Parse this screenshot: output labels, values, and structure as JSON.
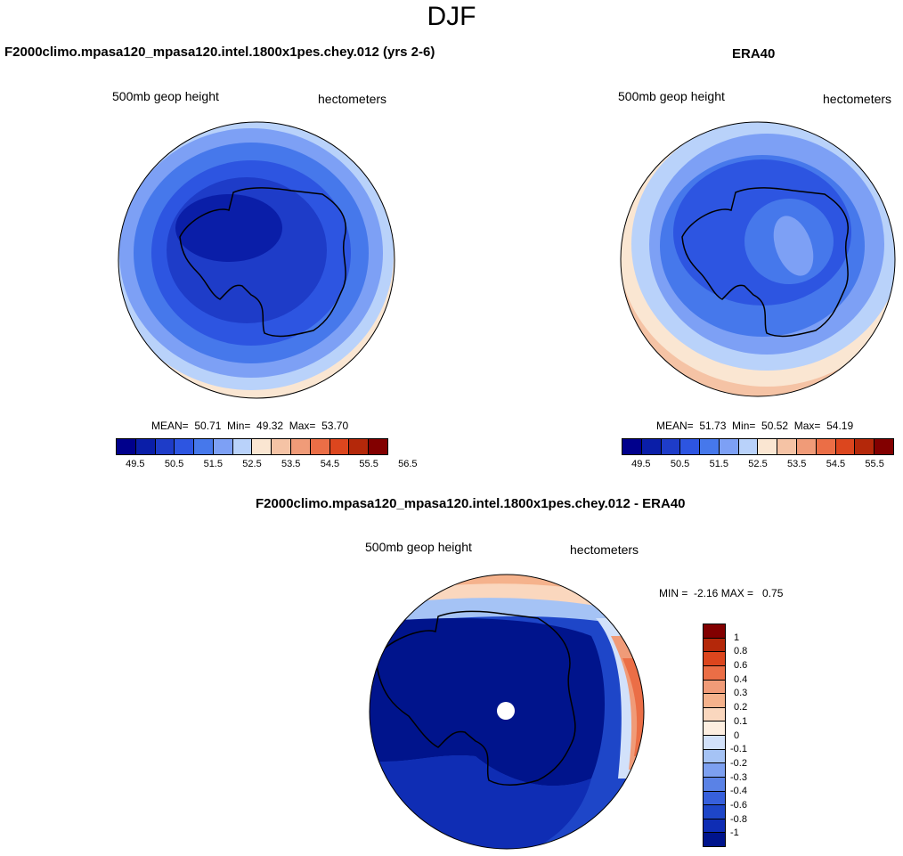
{
  "season": "DJF",
  "panels": [
    {
      "title": "F2000climo.mpasa120_mpasa120.intel.1800x1pes.chey.012 (yrs 2-6)",
      "variable": "500mb geop height",
      "units": "hectometers",
      "stats": "MEAN=  50.71  Min=  49.32  Max=  53.70"
    },
    {
      "title": "ERA40",
      "variable": "500mb geop height",
      "units": "hectometers",
      "stats": "MEAN=  51.73  Min=  50.52  Max=  54.19"
    },
    {
      "title": "F2000climo.mpasa120_mpasa120.intel.1800x1pes.chey.012 - ERA40",
      "variable": "500mb geop height",
      "units": "hectometers",
      "stats": "MIN =  -2.16 MAX =   0.75"
    }
  ],
  "colorbar_abs": {
    "colors": [
      "#00008c",
      "#0a1ea8",
      "#1e3cc8",
      "#2d55e1",
      "#4678eb",
      "#7da0f5",
      "#b9d2fa",
      "#fae6d2",
      "#f5c3a5",
      "#f09b78",
      "#eb6e46",
      "#dc461e",
      "#b4280a",
      "#820000"
    ],
    "labels": [
      "49.5",
      "50.5",
      "51.5",
      "52.5",
      "53.5",
      "54.5",
      "55.5",
      "56.5"
    ]
  },
  "colorbar_diff": {
    "colors": [
      "#820000",
      "#b4280a",
      "#dc461e",
      "#eb6e46",
      "#f09b78",
      "#f5b28c",
      "#fad7be",
      "#fdeee0",
      "#d2e1fa",
      "#a5c3f5",
      "#7da0f0",
      "#5a82e6",
      "#3760dc",
      "#1e46c8",
      "#0f2db4",
      "#00148c"
    ],
    "labels": [
      "1",
      "0.8",
      "0.6",
      "0.4",
      "0.3",
      "0.2",
      "0.1",
      "0",
      "-0.1",
      "-0.2",
      "-0.3",
      "-0.4",
      "-0.6",
      "-0.8",
      "-1"
    ]
  },
  "map_colors": {
    "deep": "#0a1ea8",
    "dark": "#1e3cc8",
    "mid": "#2d55e1",
    "light": "#4678eb",
    "pale": "#7da0f5",
    "paler": "#b9d2fa",
    "warm1": "#fae6d2",
    "warm2": "#f5c3a5",
    "warm3": "#f09b78",
    "warm4": "#eb6e46",
    "diffdeep": "#00148c",
    "coast": "#000000"
  }
}
